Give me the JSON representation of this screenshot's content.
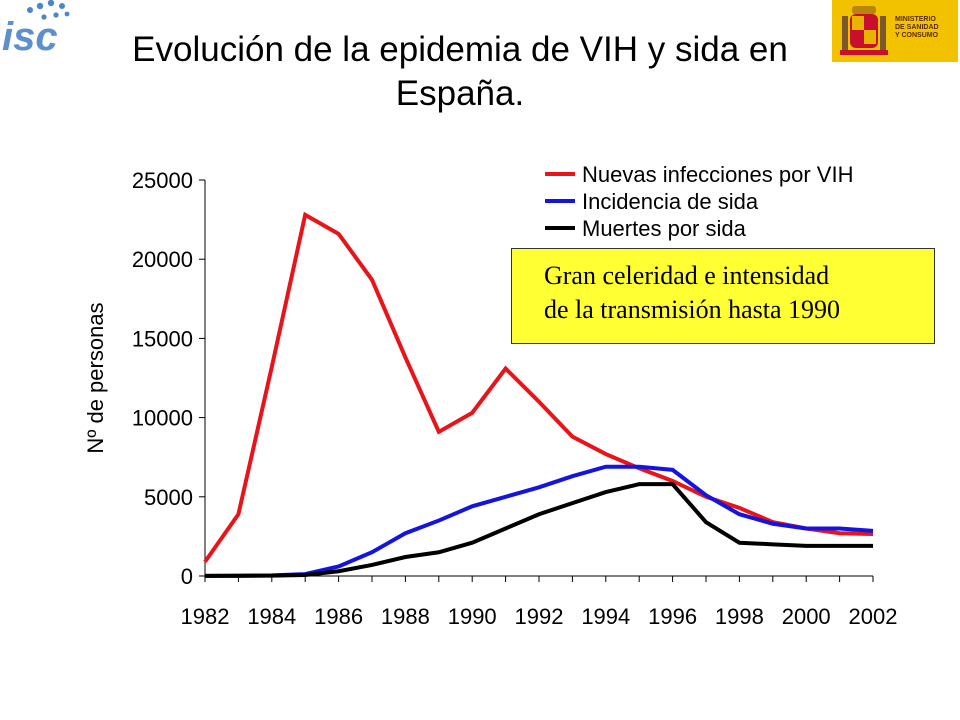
{
  "header": {
    "title_line1": "Evolución de la epidemia de VIH y sida en",
    "title_line2": "España.",
    "logo_left": "isc",
    "logo_right_text": "MINISTERIO\nDE SANIDAD\nY CONSUMO"
  },
  "callout": {
    "line1": "Gran celeridad e intensidad",
    "line2": "de la transmisión hasta 1990"
  },
  "chart_data": {
    "type": "line",
    "ylabel": "Nº de personas",
    "xlabel": "",
    "ylim": [
      0,
      25000
    ],
    "yticks": [
      0,
      5000,
      10000,
      15000,
      20000,
      25000
    ],
    "xticks": [
      1982,
      1984,
      1986,
      1988,
      1990,
      1992,
      1994,
      1996,
      1998,
      2000,
      2002
    ],
    "xlim": [
      1982,
      2002
    ],
    "grid": false,
    "legend_position": "top-right",
    "x": [
      1982,
      1983,
      1984,
      1985,
      1986,
      1987,
      1988,
      1989,
      1990,
      1991,
      1992,
      1993,
      1994,
      1995,
      1996,
      1997,
      1998,
      1999,
      2000,
      2001,
      2002
    ],
    "series": [
      {
        "name": "Nuevas infecciones por VIH",
        "color": "#e8141a",
        "values": [
          900,
          3900,
          13200,
          22800,
          21600,
          18700,
          13800,
          9100,
          10300,
          13100,
          11000,
          8800,
          7700,
          6800,
          6000,
          5000,
          4300,
          3400,
          3000,
          2700,
          2650
        ]
      },
      {
        "name": "Incidencia de sida",
        "color": "#1414e0",
        "values": [
          10,
          20,
          40,
          120,
          600,
          1500,
          2700,
          3500,
          4400,
          5000,
          5600,
          6300,
          6900,
          6900,
          6700,
          5100,
          3900,
          3300,
          3000,
          3000,
          2850
        ]
      },
      {
        "name": "Muertes por sida",
        "color": "#000000",
        "values": [
          5,
          10,
          20,
          60,
          300,
          700,
          1200,
          1500,
          2100,
          3000,
          3900,
          4600,
          5300,
          5800,
          5800,
          3400,
          2100,
          2000,
          1900,
          1900,
          1900
        ]
      }
    ]
  }
}
